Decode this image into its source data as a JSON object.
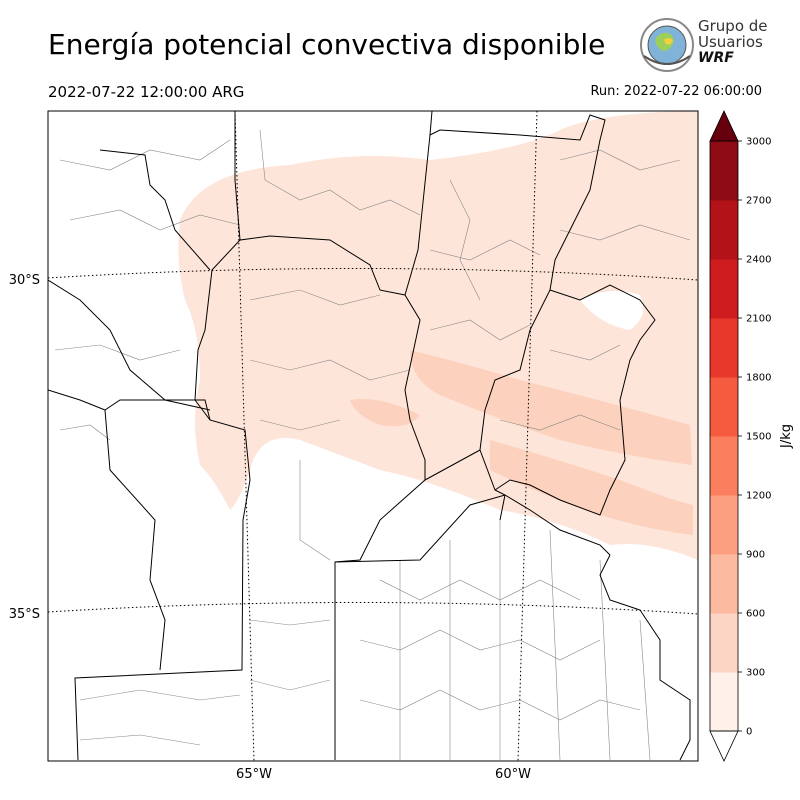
{
  "header": {
    "title": "Energía potencial convectiva disponible",
    "valid_time": "2022-07-22 12:00:00 ARG",
    "run_time": "Run: 2022-07-22 06:00:00"
  },
  "logo": {
    "line1": "Grupo de",
    "line2": "Usuarios",
    "line3": "WRF",
    "icon": "globe-seal-icon"
  },
  "map": {
    "lat_labels": [
      "30°S",
      "35°S"
    ],
    "lon_labels": [
      "65°W",
      "60°W"
    ],
    "colors": {
      "cape_low": "#fee5d9",
      "cape_mid": "#fcd1be",
      "borders": "#000000",
      "departments": "#888888",
      "gridlines": "#000000"
    }
  },
  "colorbar": {
    "label": "J/kg",
    "ticks": [
      "0",
      "300",
      "600",
      "900",
      "1200",
      "1500",
      "1800",
      "2100",
      "2400",
      "2700",
      "3000"
    ],
    "colors": [
      "#fff0ea",
      "#fdd5c4",
      "#fcbba1",
      "#fc9f80",
      "#fb7f5e",
      "#f65a3f",
      "#e8382b",
      "#cf1d1f",
      "#b21218",
      "#8e0b14"
    ],
    "over_color": "#67000d",
    "under_color": "#ffffff"
  }
}
